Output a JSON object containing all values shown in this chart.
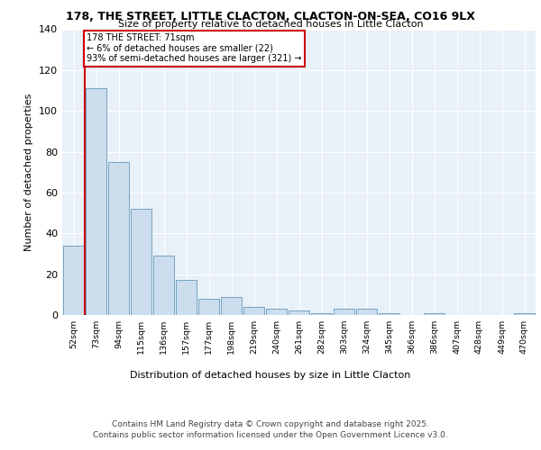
{
  "title1": "178, THE STREET, LITTLE CLACTON, CLACTON-ON-SEA, CO16 9LX",
  "title2": "Size of property relative to detached houses in Little Clacton",
  "xlabel": "Distribution of detached houses by size in Little Clacton",
  "ylabel": "Number of detached properties",
  "categories": [
    "52sqm",
    "73sqm",
    "94sqm",
    "115sqm",
    "136sqm",
    "157sqm",
    "177sqm",
    "198sqm",
    "219sqm",
    "240sqm",
    "261sqm",
    "282sqm",
    "303sqm",
    "324sqm",
    "345sqm",
    "366sqm",
    "386sqm",
    "407sqm",
    "428sqm",
    "449sqm",
    "470sqm"
  ],
  "bar_heights": [
    34,
    111,
    75,
    52,
    29,
    17,
    8,
    9,
    4,
    3,
    2,
    1,
    3,
    3,
    1,
    0,
    1,
    0,
    0,
    0,
    1
  ],
  "bar_color": "#ccdded",
  "bar_edge_color": "#6699bb",
  "annotation_text1": "178 THE STREET: 71sqm",
  "annotation_text2": "← 6% of detached houses are smaller (22)",
  "annotation_text3": "93% of semi-detached houses are larger (321) →",
  "annotation_box_color": "#cc0000",
  "red_line_x": 0.48,
  "ylim": [
    0,
    140
  ],
  "yticks": [
    0,
    20,
    40,
    60,
    80,
    100,
    120,
    140
  ],
  "background_color": "#e8f0f8",
  "footer1": "Contains HM Land Registry data © Crown copyright and database right 2025.",
  "footer2": "Contains public sector information licensed under the Open Government Licence v3.0."
}
